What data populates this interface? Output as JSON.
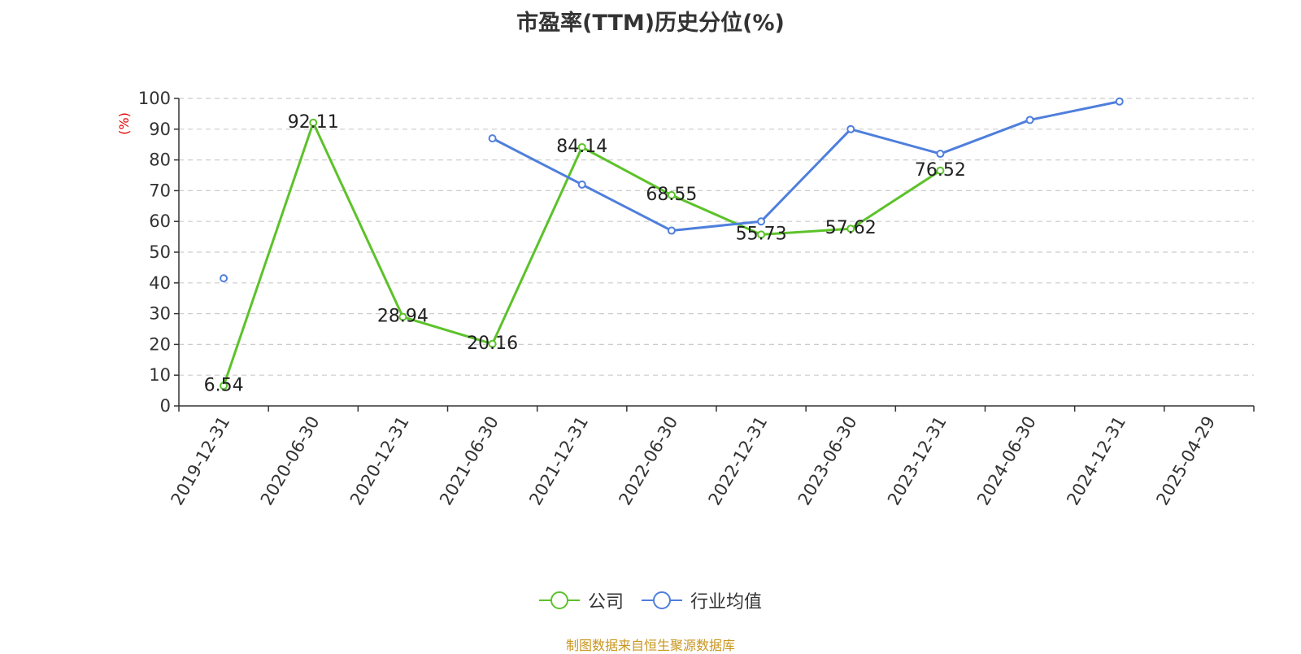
{
  "chart_data": {
    "type": "line",
    "title": "市盈率(TTM)历史分位(%)",
    "ylabel": "(%)",
    "ylim": [
      0,
      100
    ],
    "yticks": [
      0,
      10,
      20,
      30,
      40,
      50,
      60,
      70,
      80,
      90,
      100
    ],
    "categories": [
      "2019-12-31",
      "2020-06-30",
      "2020-12-31",
      "2021-06-30",
      "2021-12-31",
      "2022-06-30",
      "2022-12-31",
      "2023-06-30",
      "2023-12-31",
      "2024-06-30",
      "2024-12-31",
      "2025-04-29"
    ],
    "series": [
      {
        "name": "公司",
        "color": "#5cc22a",
        "values": [
          6.54,
          92.11,
          28.94,
          20.16,
          84.14,
          68.55,
          55.73,
          57.62,
          76.52,
          null,
          null,
          null
        ],
        "labels": [
          "6.54",
          "92.11",
          "28.94",
          "20.16",
          "84.14",
          "68.55",
          "55.73",
          "57.62",
          "76.52",
          null,
          null,
          null
        ]
      },
      {
        "name": "行业均值",
        "color": "#4f7fdc",
        "values": [
          41.5,
          null,
          null,
          87,
          72,
          57,
          60,
          90,
          82,
          93,
          99,
          null
        ]
      }
    ],
    "grid": true,
    "legend": "bottom-center",
    "source": "制图数据来自恒生聚源数据库"
  }
}
